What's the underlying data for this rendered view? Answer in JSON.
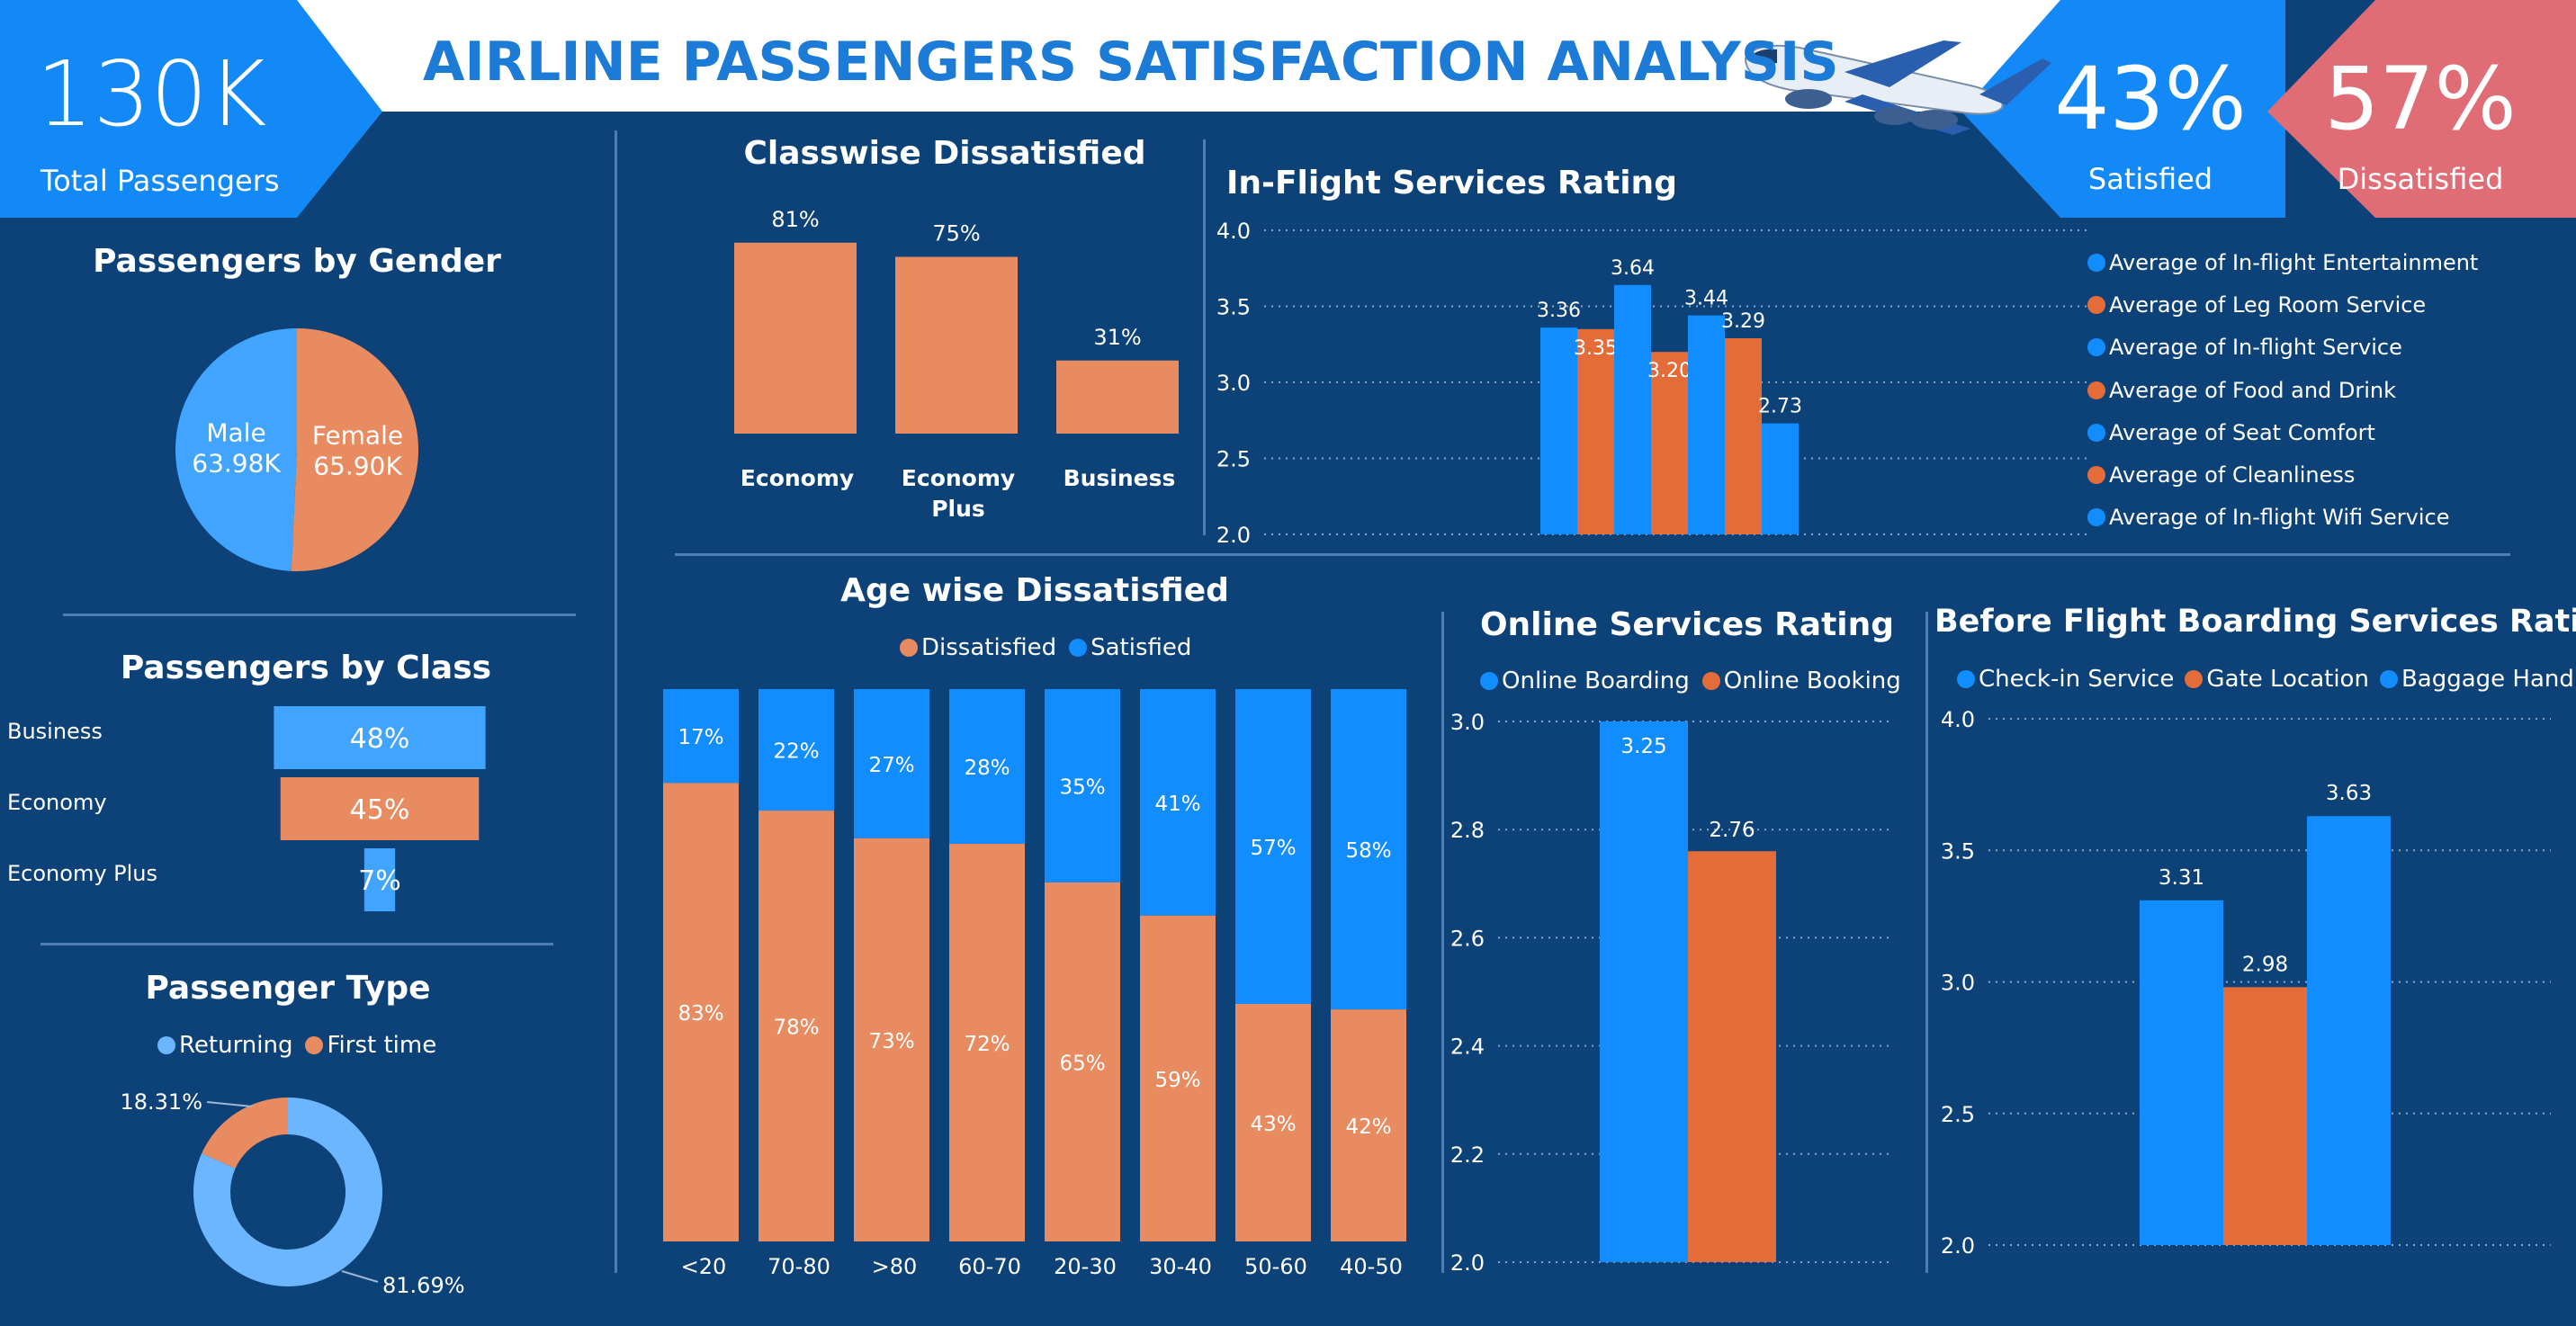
{
  "header": {
    "title": "AIRLINE PASSENGERS SATISFACTION ANALYSIS",
    "total_value": "130K",
    "total_label": "Total Passengers",
    "satisfied_value": "43%",
    "satisfied_label": "Satisfied",
    "dissatisfied_value": "57%",
    "dissatisfied_label": "Dissatisfied"
  },
  "colors": {
    "blue": "#118dff",
    "light_blue": "#41a4ff",
    "orange": "#e98b61",
    "dark_orange": "#e46c38",
    "bg": "#0d4279",
    "red_kpi": "#e06c75",
    "kpi_blue": "#1389f7"
  },
  "chart_data": [
    {
      "id": "gender",
      "type": "pie",
      "title": "Passengers by Gender",
      "slices": [
        {
          "name": "Male",
          "value": 63.98,
          "label": "63.98K"
        },
        {
          "name": "Female",
          "value": 65.9,
          "label": "65.90K"
        }
      ]
    },
    {
      "id": "class",
      "type": "bar",
      "orientation": "horizontal",
      "title": "Passengers by Class",
      "categories": [
        "Business",
        "Economy",
        "Economy Plus"
      ],
      "values": [
        48,
        45,
        7
      ],
      "labels": [
        "48%",
        "45%",
        "7%"
      ]
    },
    {
      "id": "ptype",
      "type": "pie",
      "variant": "donut",
      "title": "Passenger Type",
      "legend": [
        "Returning",
        "First time"
      ],
      "slices": [
        {
          "name": "Returning",
          "value": 81.69,
          "label": "81.69%"
        },
        {
          "name": "First time",
          "value": 18.31,
          "label": "18.31%"
        }
      ]
    },
    {
      "id": "classwise",
      "type": "bar",
      "title": "Classwise Dissatisfied",
      "categories": [
        "Economy",
        "Economy Plus",
        "Business"
      ],
      "values": [
        81,
        75,
        31
      ],
      "labels": [
        "81%",
        "75%",
        "31%"
      ]
    },
    {
      "id": "inflight",
      "type": "bar",
      "title": "In-Flight Services Rating",
      "ylim": [
        2.0,
        4.0
      ],
      "yticks": [
        "2.0",
        "2.5",
        "3.0",
        "3.5",
        "4.0"
      ],
      "series": [
        {
          "name": "Average of In-flight Entertainment",
          "value": 3.36,
          "label": "3.36"
        },
        {
          "name": "Average of Leg Room Service",
          "value": 3.35,
          "label": "3.35"
        },
        {
          "name": "Average of In-flight Service",
          "value": 3.64,
          "label": "3.64"
        },
        {
          "name": "Average of Food and Drink",
          "value": 3.2,
          "label": "3.20"
        },
        {
          "name": "Average of Seat Comfort",
          "value": 3.44,
          "label": "3.44"
        },
        {
          "name": "Average of Cleanliness",
          "value": 3.29,
          "label": "3.29"
        },
        {
          "name": "Average of In-flight Wifi Service",
          "value": 2.73,
          "label": "2.73"
        }
      ]
    },
    {
      "id": "age",
      "type": "bar",
      "variant": "stacked-100",
      "title": "Age wise Dissatisfied",
      "legend": [
        "Dissatisfied",
        "Satisfied"
      ],
      "categories": [
        "<20",
        "70-80",
        ">80",
        "60-70",
        "20-30",
        "30-40",
        "50-60",
        "40-50"
      ],
      "series": [
        {
          "name": "Dissatisfied",
          "values": [
            83,
            78,
            73,
            72,
            65,
            59,
            43,
            42
          ]
        },
        {
          "name": "Satisfied",
          "values": [
            17,
            22,
            27,
            28,
            35,
            41,
            57,
            58
          ]
        }
      ]
    },
    {
      "id": "online",
      "type": "bar",
      "title": "Online Services Rating",
      "ylim": [
        2.0,
        3.0
      ],
      "yticks": [
        "2.0",
        "2.2",
        "2.4",
        "2.6",
        "2.8",
        "3.0"
      ],
      "series": [
        {
          "name": "Online Boarding",
          "value": 3.25,
          "label": "3.25"
        },
        {
          "name": "Online Booking",
          "value": 2.76,
          "label": "2.76"
        }
      ]
    },
    {
      "id": "boarding",
      "type": "bar",
      "title": "Before Flight Boarding Services Rating",
      "ylim": [
        2.0,
        4.0
      ],
      "yticks": [
        "2.0",
        "2.5",
        "3.0",
        "3.5",
        "4.0"
      ],
      "series": [
        {
          "name": "Check-in Service",
          "value": 3.31,
          "label": "3.31"
        },
        {
          "name": "Gate Location",
          "value": 2.98,
          "label": "2.98"
        },
        {
          "name": "Baggage Handling",
          "value": 3.63,
          "label": "3.63"
        }
      ]
    }
  ]
}
